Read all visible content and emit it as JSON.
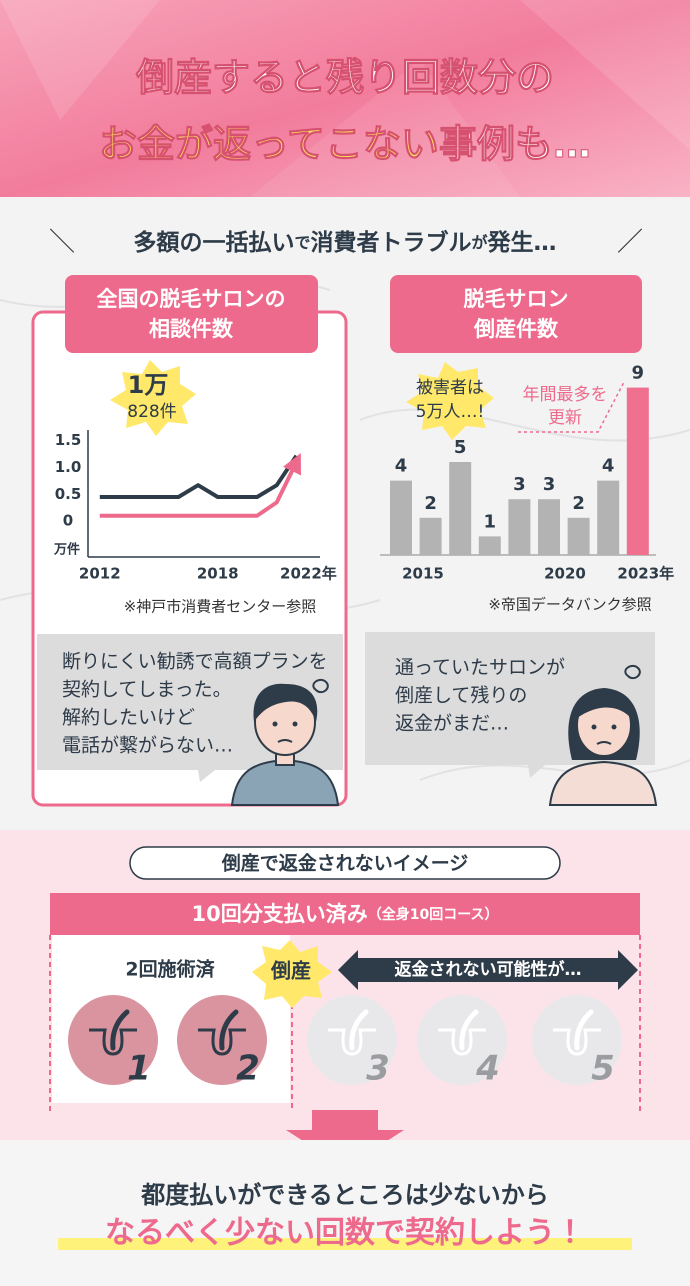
{
  "header": {
    "title_line1": "倒産すると残り回数分の",
    "title_line2_highlight": "お金が返ってこない",
    "title_line2_rest": "事例も…"
  },
  "section_heading": {
    "parts": [
      "多額の一括払い",
      "で",
      "消費者トラブル",
      "が",
      "発生…"
    ]
  },
  "chart_data": [
    {
      "type": "line",
      "title_lines": [
        "全国の脱毛サロンの",
        "相談件数"
      ],
      "badge": [
        "1万",
        "828件"
      ],
      "ylabel": "万件",
      "x": [
        2012,
        2013,
        2014,
        2015,
        2016,
        2017,
        2018,
        2019,
        2020,
        2021,
        2022
      ],
      "series": [
        {
          "color": "#2e3b48",
          "values": [
            0.45,
            0.45,
            0.45,
            0.45,
            0.45,
            0.67,
            0.45,
            0.45,
            0.45,
            0.67,
            1.22
          ]
        },
        {
          "color": "#ee6a8c",
          "values": [
            0.1,
            0.1,
            0.1,
            0.1,
            0.1,
            0.1,
            0.1,
            0.1,
            0.1,
            0.35,
            1.1
          ]
        }
      ],
      "xlim": [
        2011.4,
        2023.2
      ],
      "xticks": [
        2012,
        2018,
        {
          "value": 2022,
          "label": "2022年"
        }
      ],
      "ylim": [
        -0.67,
        1.7
      ],
      "yticks": [
        0,
        0.5,
        {
          "value": 1,
          "label": "1.0"
        },
        1.5
      ],
      "source": "※神戸市消費者センター参照"
    },
    {
      "type": "bar",
      "title_lines": [
        "脱毛サロン",
        "倒産件数"
      ],
      "categories": [
        "2015",
        null,
        null,
        null,
        null,
        "2020",
        null,
        null,
        "2023年"
      ],
      "values": [
        4,
        2,
        5,
        1,
        3,
        3,
        2,
        4,
        9
      ],
      "colors": [
        "#b3b3b3",
        "#b3b3b3",
        "#b3b3b3",
        "#b3b3b3",
        "#b3b3b3",
        "#b3b3b3",
        "#b3b3b3",
        "#b3b3b3",
        "#f0708f"
      ],
      "annotations": [
        [
          "被害者は",
          "5万人…!"
        ],
        [
          "年間最多を",
          "更新"
        ]
      ],
      "source": "※帝国データバンク参照"
    }
  ],
  "comments": [
    [
      "断りにくい勧誘で高額プランを",
      "契約してしまった。",
      "解約したいけど",
      "電話が繋がらない…"
    ],
    [
      "通っていたサロンが",
      "倒産して残りの",
      "返金がまだ…"
    ]
  ],
  "image_section": {
    "pill": "倒産で返金されないイメージ",
    "bar_main": "10回分支払い済み",
    "bar_sub": "（全身10回コース）",
    "done_label": "2回施術済",
    "burst": "倒産",
    "arrow_text": "返金されない可能性が…",
    "circles": [
      "1",
      "2",
      "3",
      "4",
      "5"
    ]
  },
  "conclusion": {
    "line1": "都度払いができるところは少ないから",
    "line2": "なるべく少ない回数で契約しよう！"
  }
}
